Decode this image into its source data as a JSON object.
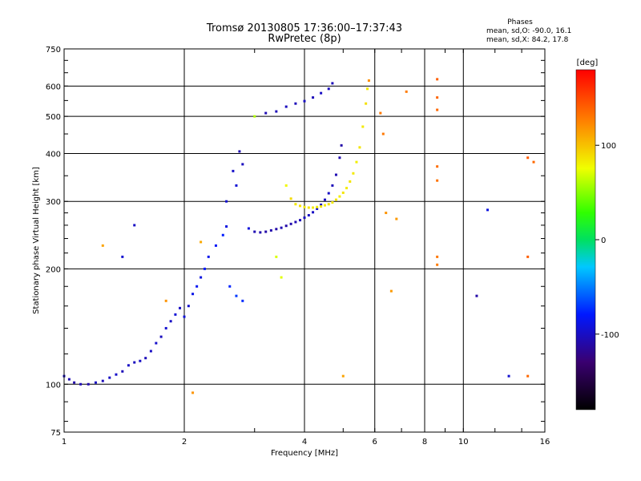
{
  "chart_data": {
    "type": "scatter",
    "title": "Tromsø 20130805 17:36:00–17:37:43",
    "subtitle": "RwPretec (8p)",
    "xlabel": "Frequency [MHz]",
    "ylabel": "Stationary phase Virtual Height [km]",
    "x_scale": "log",
    "y_scale": "log",
    "xlim": [
      1,
      16
    ],
    "ylim": [
      75,
      750
    ],
    "x_ticks": [
      1,
      2,
      4,
      6,
      8,
      10,
      16
    ],
    "x_tick_labels": [
      "1",
      "2",
      "4",
      "6",
      "8",
      "10",
      "16"
    ],
    "y_ticks": [
      75,
      100,
      200,
      300,
      400,
      500,
      600,
      750
    ],
    "y_tick_labels": [
      "75",
      "100",
      "200",
      "300",
      "400",
      "500",
      "600",
      "750"
    ],
    "grid": true,
    "phases_box": {
      "heading": "Phases",
      "line_o": "mean, sd,O:  -90.0,  16.1",
      "line_x": "mean, sd,X:   84.2,  17.8"
    },
    "colorbar": {
      "label": "[deg]",
      "range": [
        -180,
        180
      ],
      "tick_values": [
        100,
        0,
        -100
      ],
      "tick_labels": [
        "100",
        "0",
        "-100"
      ]
    },
    "series": [
      {
        "points": [
          [
            1.0,
            105,
            -100
          ],
          [
            1.03,
            103,
            -105
          ],
          [
            1.06,
            101,
            -110
          ],
          [
            1.1,
            100,
            -105
          ],
          [
            1.15,
            100,
            -108
          ],
          [
            1.2,
            101,
            -100
          ],
          [
            1.25,
            102,
            -104
          ],
          [
            1.3,
            104,
            -100
          ],
          [
            1.35,
            106,
            -98
          ],
          [
            1.4,
            108,
            -104
          ],
          [
            1.45,
            112,
            -100
          ],
          [
            1.5,
            114,
            -102
          ],
          [
            1.55,
            115,
            -99
          ],
          [
            1.6,
            117,
            -104
          ],
          [
            1.65,
            122,
            -100
          ],
          [
            1.7,
            128,
            -98
          ],
          [
            1.75,
            133,
            -102
          ],
          [
            1.8,
            140,
            -96
          ],
          [
            1.85,
            146,
            -100
          ],
          [
            1.9,
            152,
            -94
          ],
          [
            1.95,
            158,
            -100
          ],
          [
            2.0,
            150,
            -92
          ],
          [
            2.05,
            160,
            -96
          ],
          [
            2.1,
            172,
            -88
          ],
          [
            2.15,
            180,
            -84
          ],
          [
            2.2,
            190,
            -90
          ],
          [
            2.25,
            200,
            -80
          ],
          [
            2.3,
            215,
            -86
          ],
          [
            2.4,
            230,
            -82
          ],
          [
            2.5,
            245,
            -78
          ],
          [
            2.55,
            258,
            -90
          ],
          [
            2.6,
            180,
            -76
          ],
          [
            2.7,
            170,
            -70
          ],
          [
            2.8,
            165,
            -74
          ],
          [
            2.9,
            255,
            -92
          ],
          [
            3.0,
            250,
            -106
          ],
          [
            3.1,
            249,
            -108
          ],
          [
            3.2,
            250,
            -110
          ],
          [
            3.3,
            252,
            -108
          ],
          [
            3.4,
            254,
            -110
          ],
          [
            3.5,
            256,
            -106
          ],
          [
            3.6,
            259,
            -110
          ],
          [
            3.7,
            262,
            -108
          ],
          [
            3.8,
            265,
            -106
          ],
          [
            3.9,
            268,
            -104
          ],
          [
            4.0,
            272,
            -102
          ],
          [
            4.1,
            276,
            -100
          ],
          [
            4.2,
            281,
            -100
          ],
          [
            4.3,
            287,
            -98
          ],
          [
            4.4,
            294,
            -100
          ],
          [
            4.5,
            303,
            -102
          ],
          [
            4.6,
            315,
            -100
          ],
          [
            4.7,
            330,
            -104
          ],
          [
            4.8,
            352,
            -106
          ],
          [
            4.9,
            390,
            -108
          ],
          [
            4.95,
            420,
            -110
          ],
          [
            3.2,
            510,
            -106
          ],
          [
            3.4,
            515,
            -104
          ],
          [
            3.6,
            530,
            -102
          ],
          [
            3.8,
            540,
            -104
          ],
          [
            4.0,
            548,
            -100
          ],
          [
            4.2,
            560,
            -104
          ],
          [
            4.4,
            575,
            -100
          ],
          [
            4.6,
            590,
            -102
          ],
          [
            4.7,
            610,
            -104
          ],
          [
            1.5,
            260,
            -100
          ],
          [
            1.4,
            215,
            -96
          ],
          [
            10.8,
            170,
            -110
          ],
          [
            11.5,
            285,
            -90
          ],
          [
            13.0,
            105,
            -96
          ],
          [
            2.75,
            405,
            -106
          ],
          [
            2.65,
            360,
            -98
          ],
          [
            2.55,
            300,
            -96
          ],
          [
            2.7,
            330,
            -94
          ],
          [
            2.8,
            375,
            -102
          ]
        ]
      },
      {
        "points": [
          [
            3.7,
            305,
            90
          ],
          [
            3.8,
            295,
            85
          ],
          [
            3.9,
            292,
            88
          ],
          [
            4.0,
            290,
            84
          ],
          [
            4.1,
            289,
            86
          ],
          [
            4.2,
            289,
            84
          ],
          [
            4.3,
            290,
            82
          ],
          [
            4.4,
            291,
            86
          ],
          [
            4.5,
            293,
            84
          ],
          [
            4.6,
            295,
            88
          ],
          [
            4.7,
            298,
            84
          ],
          [
            4.8,
            303,
            86
          ],
          [
            4.9,
            309,
            82
          ],
          [
            5.0,
            316,
            86
          ],
          [
            5.1,
            325,
            84
          ],
          [
            5.2,
            338,
            86
          ],
          [
            5.3,
            355,
            84
          ],
          [
            5.4,
            380,
            82
          ],
          [
            5.5,
            415,
            86
          ],
          [
            5.6,
            470,
            84
          ],
          [
            5.7,
            540,
            88
          ],
          [
            5.75,
            590,
            84
          ],
          [
            3.6,
            330,
            78
          ],
          [
            3.5,
            190,
            72
          ],
          [
            3.4,
            215,
            70
          ],
          [
            2.2,
            235,
            110
          ],
          [
            1.8,
            165,
            118
          ],
          [
            1.25,
            230,
            112
          ],
          [
            5.8,
            620,
            120
          ],
          [
            6.6,
            175,
            116
          ],
          [
            7.2,
            580,
            128
          ],
          [
            8.6,
            625,
            140
          ],
          [
            8.6,
            560,
            138
          ],
          [
            8.6,
            520,
            136
          ],
          [
            8.6,
            370,
            134
          ],
          [
            8.6,
            340,
            132
          ],
          [
            8.6,
            215,
            130
          ],
          [
            8.6,
            205,
            128
          ],
          [
            14.5,
            215,
            140
          ],
          [
            14.5,
            105,
            136
          ],
          [
            6.2,
            510,
            130
          ],
          [
            6.3,
            450,
            130
          ],
          [
            6.4,
            280,
            118
          ],
          [
            6.8,
            270,
            116
          ],
          [
            3.0,
            500,
            60
          ],
          [
            2.1,
            95,
            118
          ],
          [
            5.0,
            105,
            112
          ],
          [
            14.5,
            390,
            142
          ],
          [
            15.0,
            380,
            136
          ]
        ]
      }
    ]
  }
}
